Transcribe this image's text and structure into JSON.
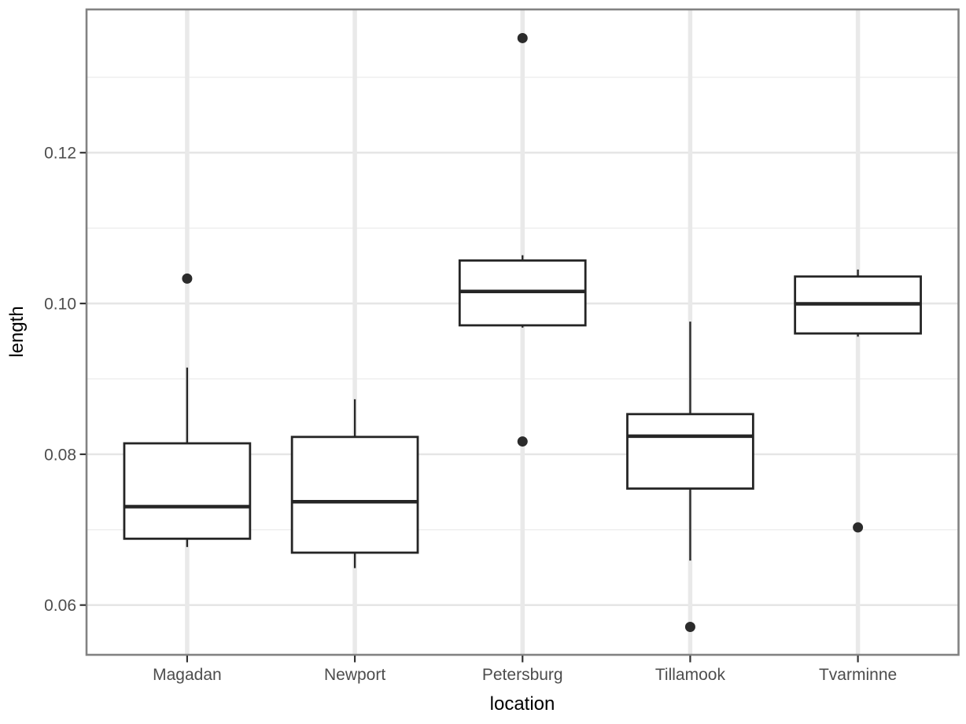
{
  "figure": {
    "background": "#ffffff"
  },
  "chart_data": {
    "type": "boxplot",
    "title": "",
    "xlabel": "location",
    "ylabel": "length",
    "legend": "none",
    "grid": "horizontal major+minor, vertical major at category centers",
    "categories": [
      "Magadan",
      "Newport",
      "Petersburg",
      "Tillamook",
      "Tvarminne"
    ],
    "series": [
      {
        "category": "Magadan",
        "whisker_low": 0.0677,
        "q1": 0.0688,
        "median": 0.07305,
        "q3": 0.08145,
        "whisker_high": 0.0915,
        "outliers": [
          0.1033
        ]
      },
      {
        "category": "Newport",
        "whisker_low": 0.0649,
        "q1": 0.06695,
        "median": 0.0737,
        "q3": 0.0823,
        "whisker_high": 0.0873,
        "outliers": []
      },
      {
        "category": "Petersburg",
        "whisker_low": 0.0968,
        "q1": 0.0971,
        "median": 0.1016,
        "q3": 0.1057,
        "whisker_high": 0.1064,
        "outliers": [
          0.1352,
          0.0817
        ]
      },
      {
        "category": "Tillamook",
        "whisker_low": 0.0659,
        "q1": 0.07545,
        "median": 0.0824,
        "q3": 0.085325,
        "whisker_high": 0.0976,
        "outliers": [
          0.0571
        ]
      },
      {
        "category": "Tvarminne",
        "whisker_low": 0.0956,
        "q1": 0.096025,
        "median": 0.09995,
        "q3": 0.103575,
        "whisker_high": 0.1045,
        "outliers": [
          0.0703
        ]
      }
    ],
    "y_axis": {
      "ticks": [
        0.06,
        0.08,
        0.1,
        0.12
      ],
      "tick_labels": [
        "0.06",
        "0.08",
        "0.10",
        "0.12"
      ],
      "minor_ticks": [
        0.07,
        0.09,
        0.11,
        0.13
      ],
      "ylim": [
        0.0534,
        0.139
      ]
    }
  },
  "style": {
    "box_stroke": "#252525",
    "box_fill": "#ffffff",
    "outlier_fill": "#2b2b2b",
    "grid_major": "#e6e6e6",
    "grid_minor": "#f0f0f0",
    "grid_vertical": "#e9e9e9",
    "panel_border": "#828282",
    "axis_tick": "#333333",
    "tick_label_color": "#4d4d4d",
    "axis_title_color": "#000000"
  }
}
